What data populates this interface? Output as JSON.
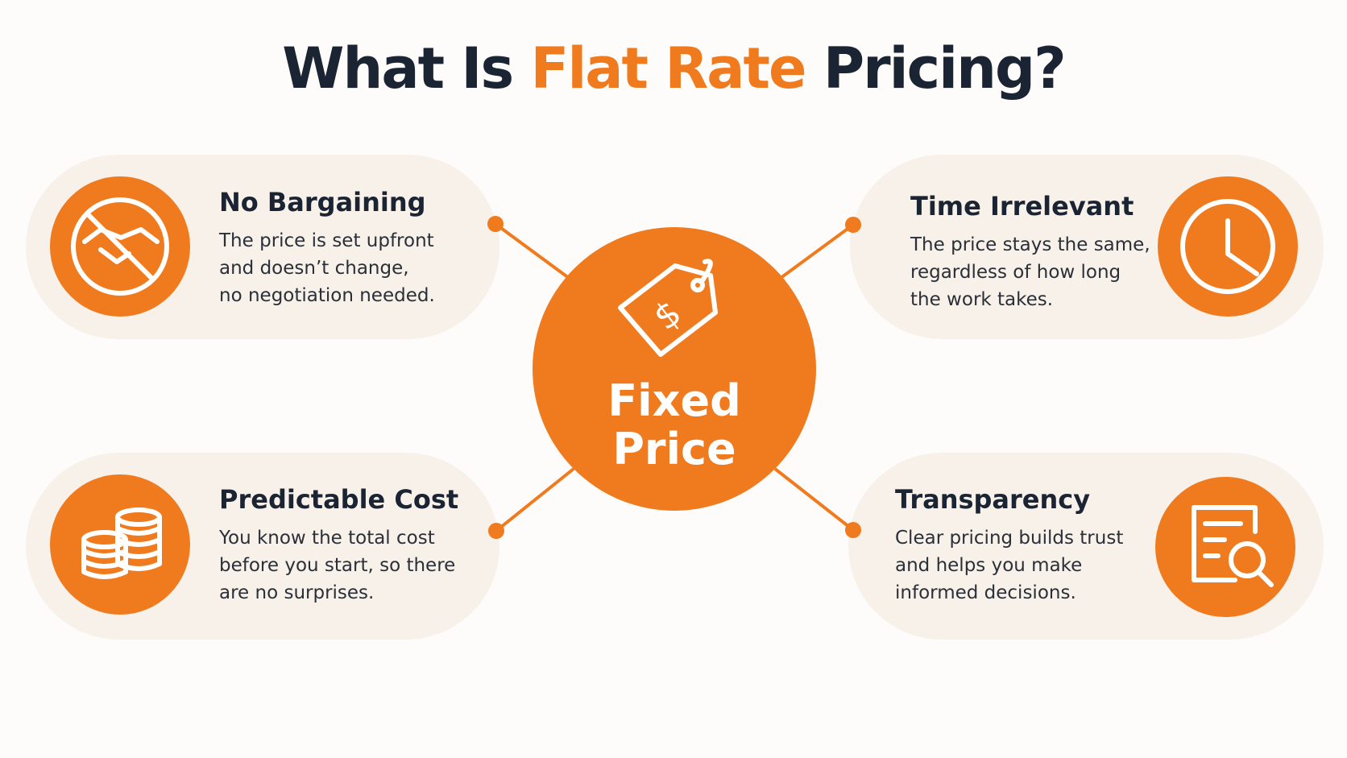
{
  "title": {
    "parts": [
      "What Is ",
      "Flat Rate",
      " Pricing?"
    ]
  },
  "center": {
    "lines": [
      "Fixed",
      "Price"
    ]
  },
  "cards": [
    {
      "title": "No Bargaining",
      "lines": [
        "The price is set upfront",
        "and doesn’t change,",
        "no negotiation needed."
      ]
    },
    {
      "title": "Time Irrelevant",
      "lines": [
        "The price stays the same,",
        "regardless of how long",
        "the work takes."
      ]
    },
    {
      "title": "Predictable Cost",
      "lines": [
        "You know the total cost",
        "before you start, so there",
        "are no surprises."
      ]
    },
    {
      "title": "Transparency",
      "lines": [
        "Clear pricing builds trust",
        "and helps you make",
        "informed decisions."
      ]
    }
  ]
}
